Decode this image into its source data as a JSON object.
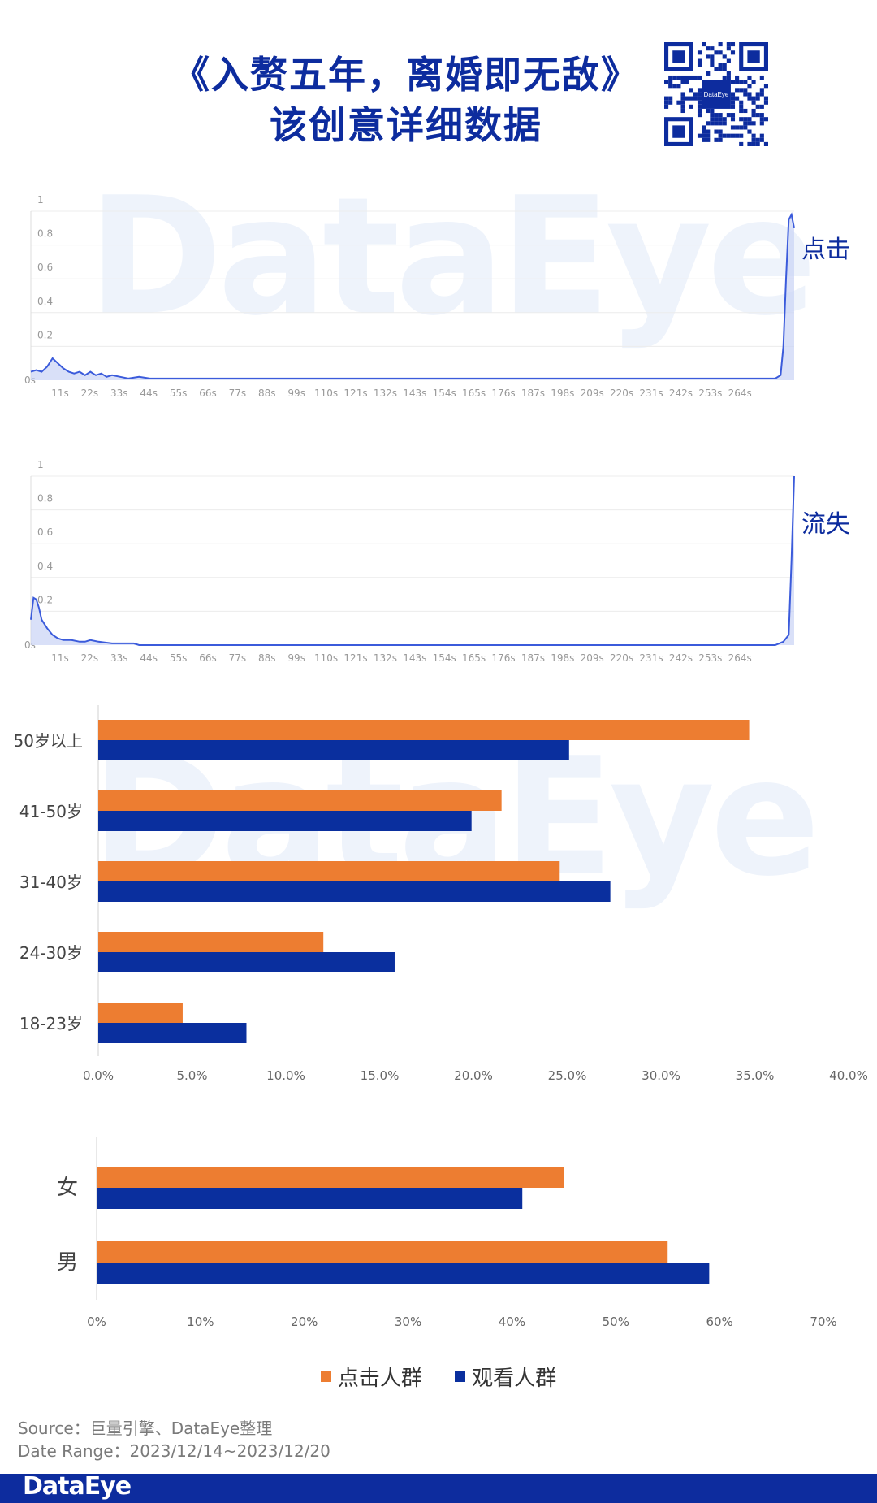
{
  "header": {
    "title_line1": "《入赘五年，离婚即无敌》",
    "title_line2": "该创意详细数据",
    "qr_label": "DataEye"
  },
  "watermark": "DataEye",
  "colors": {
    "title": "#0d2c9e",
    "line": "#3b5bdb",
    "area": "#c9d3f5",
    "click_bar": "#ed7d31",
    "view_bar": "#0a2f9e",
    "footer": "#0d2c9e"
  },
  "chart_data": [
    {
      "type": "area",
      "title": "点击",
      "x_ticks": [
        "0s",
        "11s",
        "22s",
        "33s",
        "44s",
        "55s",
        "66s",
        "77s",
        "88s",
        "99s",
        "110s",
        "121s",
        "132s",
        "143s",
        "154s",
        "165s",
        "176s",
        "187s",
        "198s",
        "209s",
        "220s",
        "231s",
        "242s",
        "253s",
        "264s"
      ],
      "y_ticks": [
        "0.2",
        "0.4",
        "0.6",
        "0.8",
        "1"
      ],
      "ylim": [
        0,
        1
      ],
      "xlim": [
        0,
        282
      ],
      "x": [
        0,
        2,
        4,
        6,
        8,
        10,
        12,
        14,
        16,
        18,
        20,
        22,
        24,
        26,
        28,
        30,
        33,
        36,
        40,
        44,
        50,
        60,
        70,
        80,
        90,
        100,
        110,
        120,
        130,
        140,
        150,
        160,
        170,
        180,
        190,
        200,
        210,
        220,
        230,
        240,
        250,
        260,
        270,
        275,
        277,
        278,
        279,
        280,
        281,
        282
      ],
      "y": [
        0.05,
        0.06,
        0.05,
        0.08,
        0.13,
        0.1,
        0.07,
        0.05,
        0.04,
        0.05,
        0.03,
        0.05,
        0.03,
        0.04,
        0.02,
        0.03,
        0.02,
        0.01,
        0.02,
        0.01,
        0.01,
        0.01,
        0.01,
        0.01,
        0.01,
        0.01,
        0.01,
        0.01,
        0.01,
        0.01,
        0.01,
        0.01,
        0.01,
        0.01,
        0.01,
        0.01,
        0.01,
        0.01,
        0.01,
        0.01,
        0.01,
        0.01,
        0.01,
        0.01,
        0.03,
        0.2,
        0.6,
        0.95,
        0.98,
        0.9
      ]
    },
    {
      "type": "area",
      "title": "流失",
      "x_ticks": [
        "0s",
        "11s",
        "22s",
        "33s",
        "44s",
        "55s",
        "66s",
        "77s",
        "88s",
        "99s",
        "110s",
        "121s",
        "132s",
        "143s",
        "154s",
        "165s",
        "176s",
        "187s",
        "198s",
        "209s",
        "220s",
        "231s",
        "242s",
        "253s",
        "264s"
      ],
      "y_ticks": [
        "0.2",
        "0.4",
        "0.6",
        "0.8",
        "1"
      ],
      "ylim": [
        0,
        1
      ],
      "xlim": [
        0,
        282
      ],
      "x": [
        0,
        1,
        2,
        3,
        4,
        6,
        8,
        10,
        12,
        15,
        18,
        20,
        22,
        25,
        30,
        35,
        38,
        40,
        50,
        100,
        150,
        200,
        250,
        275,
        278,
        280,
        281,
        282
      ],
      "y": [
        0.15,
        0.28,
        0.27,
        0.22,
        0.15,
        0.1,
        0.06,
        0.04,
        0.03,
        0.03,
        0.02,
        0.02,
        0.03,
        0.02,
        0.01,
        0.01,
        0.01,
        0.0,
        0.0,
        0.0,
        0.0,
        0.0,
        0.0,
        0.0,
        0.02,
        0.06,
        0.5,
        1.0
      ]
    },
    {
      "type": "bar",
      "orientation": "horizontal",
      "categories": [
        "50岁以上",
        "41-50岁",
        "31-40岁",
        "24-30岁",
        "18-23岁"
      ],
      "series": [
        {
          "name": "点击人群",
          "values": [
            34.7,
            21.5,
            24.6,
            12.0,
            4.5
          ]
        },
        {
          "name": "观看人群",
          "values": [
            25.1,
            19.9,
            27.3,
            15.8,
            7.9
          ]
        }
      ],
      "x_ticks": [
        "0.0%",
        "5.0%",
        "10.0%",
        "15.0%",
        "20.0%",
        "25.0%",
        "30.0%",
        "35.0%",
        "40.0%"
      ],
      "xlim": [
        0,
        40
      ]
    },
    {
      "type": "bar",
      "orientation": "horizontal",
      "categories": [
        "女",
        "男"
      ],
      "series": [
        {
          "name": "点击人群",
          "values": [
            45,
            55
          ]
        },
        {
          "name": "观看人群",
          "values": [
            41,
            59
          ]
        }
      ],
      "x_ticks": [
        "0%",
        "10%",
        "20%",
        "30%",
        "40%",
        "50%",
        "60%",
        "70%"
      ],
      "xlim": [
        0,
        70
      ]
    }
  ],
  "legend": {
    "items": [
      {
        "label": "点击人群",
        "color": "#ed7d31"
      },
      {
        "label": "观看人群",
        "color": "#0a2f9e"
      }
    ]
  },
  "footer": {
    "source": "Source：巨量引擎、DataEye整理",
    "date_range": "Date Range：2023/12/14~2023/12/20",
    "logo": "DataEye"
  }
}
